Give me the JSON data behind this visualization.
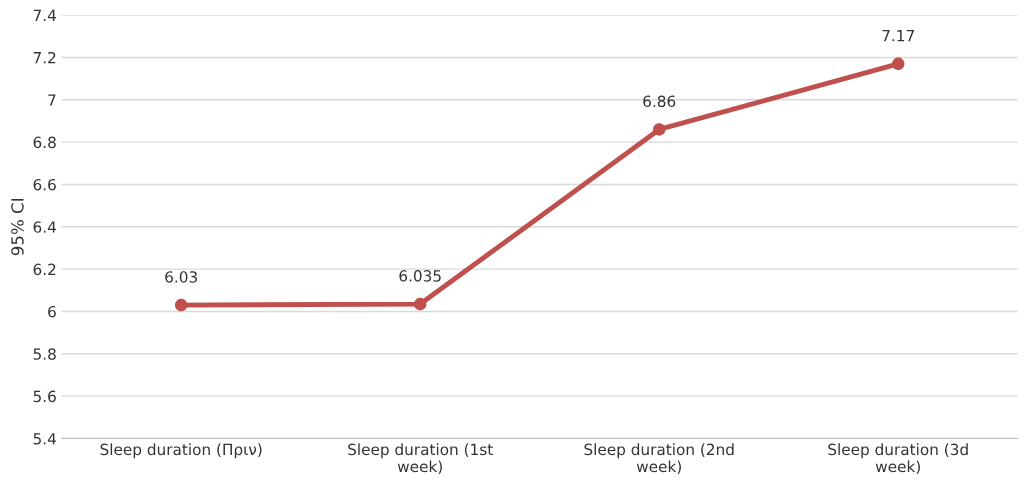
{
  "chart_data": {
    "type": "line",
    "ylabel": "95% CI",
    "categories": [
      "Sleep duration (Πριν)",
      "Sleep duration (1st week)",
      "Sleep duration (2nd week)",
      "Sleep duration (3d week)"
    ],
    "series": [
      {
        "color": "#c0504d",
        "values": [
          6.03,
          6.035,
          6.86,
          7.17
        ]
      }
    ],
    "ylim": [
      5.4,
      7.4
    ],
    "yticks": [
      5.4,
      5.6,
      5.8,
      6,
      6.2,
      6.4,
      6.6,
      6.8,
      7,
      7.2,
      7.4
    ],
    "grid": "y",
    "marker": "circle",
    "line_style": "solid",
    "data_labels": true,
    "legend": false
  }
}
